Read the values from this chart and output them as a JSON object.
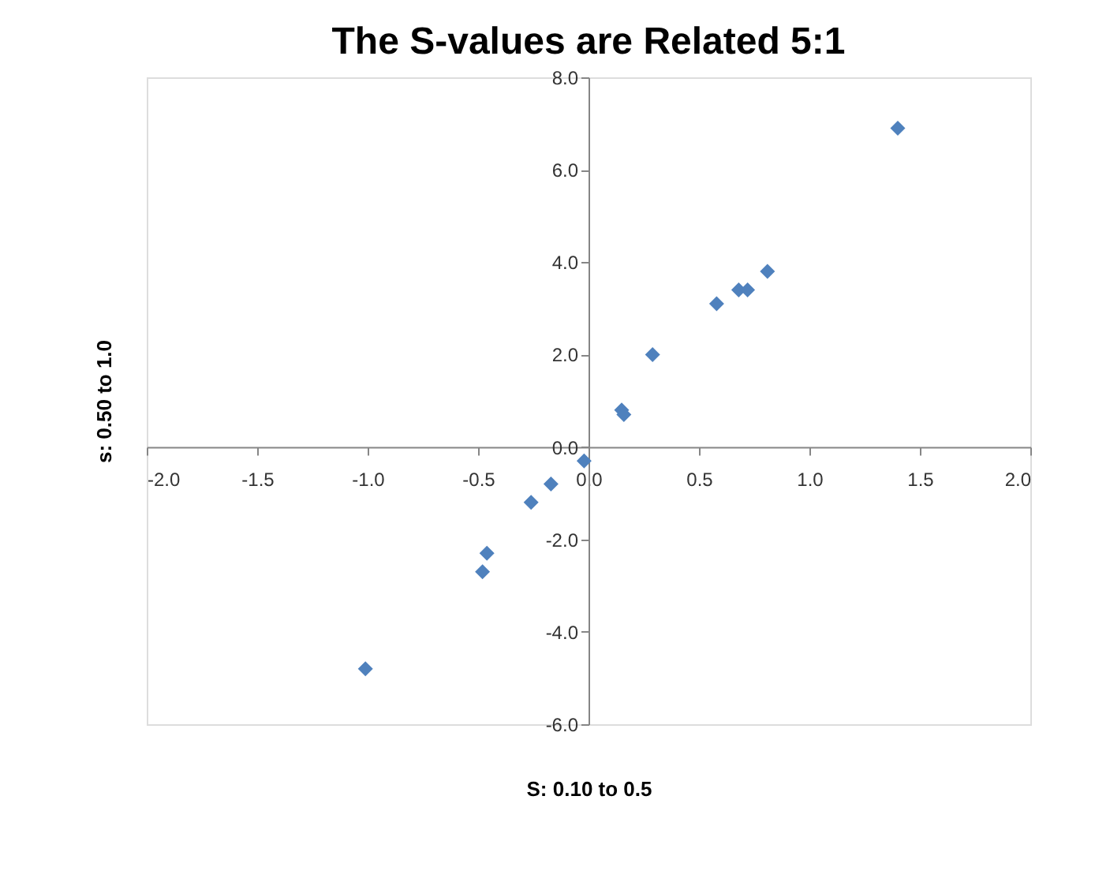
{
  "chart_data": {
    "type": "scatter",
    "title": "The S-values are Related 5:1",
    "xlabel": "S: 0.10 to 0.5",
    "ylabel": "s: 0.50 to 1.0",
    "x": [
      -1.01,
      -0.46,
      -0.48,
      -0.26,
      -0.17,
      -0.02,
      0.15,
      0.16,
      0.29,
      0.58,
      0.68,
      0.72,
      0.81,
      1.4
    ],
    "values": [
      -4.8,
      -2.3,
      -2.7,
      -1.2,
      -0.8,
      -0.3,
      0.8,
      0.7,
      2.0,
      3.1,
      3.4,
      3.4,
      3.8,
      6.9
    ],
    "color": "#4f81bd",
    "marker": "diamond",
    "grid": false,
    "xlim": [
      -2,
      2
    ],
    "ylim": [
      -6,
      8
    ],
    "xticks": [
      {
        "value": -2,
        "label": "-2.0"
      },
      {
        "value": -1.5,
        "label": "-1.5"
      },
      {
        "value": -1,
        "label": "-1.0"
      },
      {
        "value": -0.5,
        "label": "-0.5"
      },
      {
        "value": 0,
        "label": "0.0"
      },
      {
        "value": 0.5,
        "label": "0.5"
      },
      {
        "value": 1,
        "label": "1.0"
      },
      {
        "value": 1.5,
        "label": "1.5"
      },
      {
        "value": 2,
        "label": "2.0"
      }
    ],
    "yticks": [
      {
        "value": -6,
        "label": "-6.0"
      },
      {
        "value": -4,
        "label": "-4.0"
      },
      {
        "value": -2,
        "label": "-2.0"
      },
      {
        "value": 0,
        "label": "0.0"
      },
      {
        "value": 2,
        "label": "2.0"
      },
      {
        "value": 4,
        "label": "4.0"
      },
      {
        "value": 6,
        "label": "6.0"
      },
      {
        "value": 8,
        "label": "8.0"
      }
    ]
  }
}
